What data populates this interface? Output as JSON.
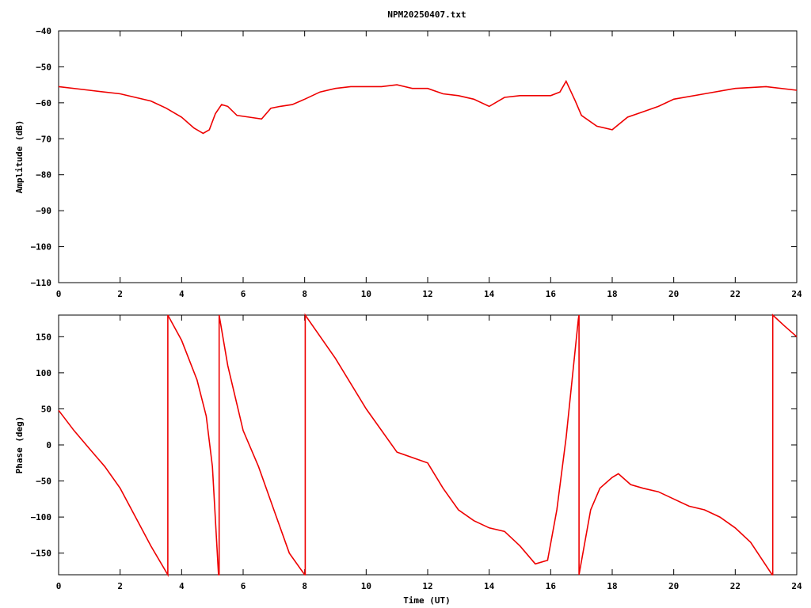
{
  "chart_data": [
    {
      "type": "line",
      "title": "NPM20250407.txt",
      "xlabel": "",
      "ylabel": "Amplitude (dB)",
      "xlim": [
        0,
        24
      ],
      "ylim": [
        -110,
        -40
      ],
      "x_ticks": [
        0,
        2,
        4,
        6,
        8,
        10,
        12,
        14,
        16,
        18,
        20,
        22,
        24
      ],
      "y_ticks": [
        -110,
        -100,
        -90,
        -80,
        -70,
        -60,
        -50,
        -40
      ],
      "grid": false,
      "color": "#ee0000",
      "series": [
        {
          "x": [
            0,
            1,
            2,
            3,
            3.5,
            4,
            4.4,
            4.7,
            4.9,
            5.1,
            5.3,
            5.5,
            5.8,
            6.2,
            6.6,
            6.9,
            7.2,
            7.6,
            8.0,
            8.5,
            9,
            9.5,
            10,
            10.5,
            11,
            11.5,
            12,
            12.5,
            13,
            13.5,
            14,
            14.5,
            15,
            15.5,
            16,
            16.3,
            16.5,
            16.8,
            17,
            17.5,
            18,
            18.5,
            19,
            19.5,
            20,
            21,
            22,
            23,
            24
          ],
          "y": [
            -55.5,
            -56.5,
            -57.5,
            -59.5,
            -61.5,
            -64,
            -67,
            -68.5,
            -67.5,
            -63,
            -60.5,
            -61,
            -63.5,
            -64,
            -64.5,
            -61.5,
            -61,
            -60.5,
            -59,
            -57,
            -56,
            -55.5,
            -55.5,
            -55.5,
            -55,
            -56,
            -56,
            -57.5,
            -58,
            -59,
            -61,
            -58.5,
            -58,
            -58,
            -58,
            -57,
            -54,
            -59.5,
            -63.5,
            -66.5,
            -67.5,
            -64,
            -62.5,
            -61,
            -59,
            -57.5,
            -56,
            -55.5,
            -56.5
          ]
        }
      ]
    },
    {
      "type": "line",
      "title": "",
      "xlabel": "Time (UT)",
      "ylabel": "Phase (deg)",
      "xlim": [
        0,
        24
      ],
      "ylim": [
        -180,
        180
      ],
      "x_ticks": [
        0,
        2,
        4,
        6,
        8,
        10,
        12,
        14,
        16,
        18,
        20,
        22,
        24
      ],
      "y_ticks": [
        -150,
        -100,
        -50,
        0,
        50,
        100,
        150
      ],
      "grid": false,
      "color": "#ee0000",
      "series": [
        {
          "x": [
            0,
            0.5,
            1,
            1.5,
            2,
            2.5,
            3,
            3.55,
            3.55,
            4,
            4.5,
            4.8,
            5.0,
            5.2,
            5.22,
            5.22,
            5.5,
            6,
            6.5,
            7,
            7.5,
            8.0,
            8.02,
            8.02,
            9,
            10,
            11,
            12,
            12.5,
            13,
            13.5,
            14,
            14.5,
            15,
            15.5,
            15.9,
            16.2,
            16.5,
            16.9,
            16.92,
            16.92,
            17.3,
            17.6,
            18,
            18.2,
            18.6,
            19,
            19.5,
            20,
            20.5,
            21,
            21.5,
            22,
            22.5,
            23.2,
            23.22,
            23.22,
            23.6,
            24
          ],
          "y": [
            48,
            20,
            -5,
            -30,
            -60,
            -100,
            -140,
            -180,
            180,
            145,
            90,
            40,
            -30,
            -180,
            -180,
            180,
            110,
            20,
            -30,
            -90,
            -150,
            -180,
            -180,
            180,
            120,
            50,
            -10,
            -25,
            -60,
            -90,
            -105,
            -115,
            -120,
            -140,
            -165,
            -160,
            -90,
            10,
            175,
            180,
            -180,
            -90,
            -60,
            -45,
            -40,
            -55,
            -60,
            -65,
            -75,
            -85,
            -90,
            -100,
            -115,
            -135,
            -180,
            -180,
            180,
            165,
            150
          ]
        }
      ]
    }
  ]
}
